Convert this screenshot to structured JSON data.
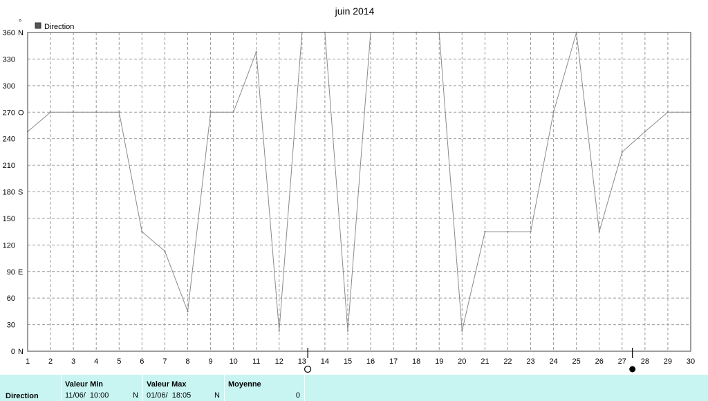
{
  "chart_data": {
    "type": "line",
    "title": "juin 2014",
    "y_unit": "°",
    "legend": [
      "Direction"
    ],
    "legend_position": "top-left",
    "grid": true,
    "xlim": [
      1,
      30
    ],
    "ylim": [
      0,
      360
    ],
    "x_ticks": [
      1,
      2,
      3,
      4,
      5,
      6,
      7,
      8,
      9,
      10,
      11,
      12,
      13,
      14,
      15,
      16,
      17,
      18,
      19,
      20,
      21,
      22,
      23,
      24,
      25,
      26,
      27,
      28,
      29,
      30
    ],
    "y_ticks": [
      {
        "value": 0,
        "label": "0",
        "dir": "N"
      },
      {
        "value": 30,
        "label": "30",
        "dir": ""
      },
      {
        "value": 60,
        "label": "60",
        "dir": ""
      },
      {
        "value": 90,
        "label": "90",
        "dir": "E"
      },
      {
        "value": 120,
        "label": "120",
        "dir": ""
      },
      {
        "value": 150,
        "label": "150",
        "dir": ""
      },
      {
        "value": 180,
        "label": "180",
        "dir": "S"
      },
      {
        "value": 210,
        "label": "210",
        "dir": ""
      },
      {
        "value": 240,
        "label": "240",
        "dir": ""
      },
      {
        "value": 270,
        "label": "270",
        "dir": "O"
      },
      {
        "value": 300,
        "label": "300",
        "dir": ""
      },
      {
        "value": 330,
        "label": "330",
        "dir": ""
      },
      {
        "value": 360,
        "label": "360",
        "dir": "N"
      }
    ],
    "series": [
      {
        "name": "Direction",
        "color": "#8a8a8a",
        "points": [
          [
            1,
            248
          ],
          [
            2,
            270
          ],
          [
            3,
            270
          ],
          [
            4,
            270
          ],
          [
            5,
            270
          ],
          [
            6,
            135
          ],
          [
            7,
            113
          ],
          [
            8,
            45
          ],
          [
            9,
            270
          ],
          [
            10,
            270
          ],
          [
            11,
            338
          ],
          [
            12,
            23
          ],
          [
            13,
            360
          ],
          [
            14,
            360
          ],
          [
            15,
            23
          ],
          [
            16,
            360
          ],
          [
            17,
            360
          ],
          [
            18,
            360
          ],
          [
            19,
            360
          ],
          [
            20,
            23
          ],
          [
            21,
            135
          ],
          [
            22,
            135
          ],
          [
            23,
            135
          ],
          [
            24,
            270
          ],
          [
            25,
            360
          ],
          [
            26,
            135
          ],
          [
            27,
            225
          ],
          [
            28,
            248
          ],
          [
            29,
            270
          ],
          [
            30,
            270
          ]
        ]
      }
    ],
    "moon_markers": [
      {
        "x": 13.25,
        "phase": "full"
      },
      {
        "x": 27.45,
        "phase": "new"
      }
    ]
  },
  "stats": {
    "row_label": "Direction",
    "min_header": "Valeur Min",
    "min_date": "11/06/  10:00",
    "min_dir": "N",
    "max_header": "Valeur Max",
    "max_date": "01/06/  18:05",
    "max_dir": "N",
    "avg_header": "Moyenne",
    "avg_value": "0"
  }
}
